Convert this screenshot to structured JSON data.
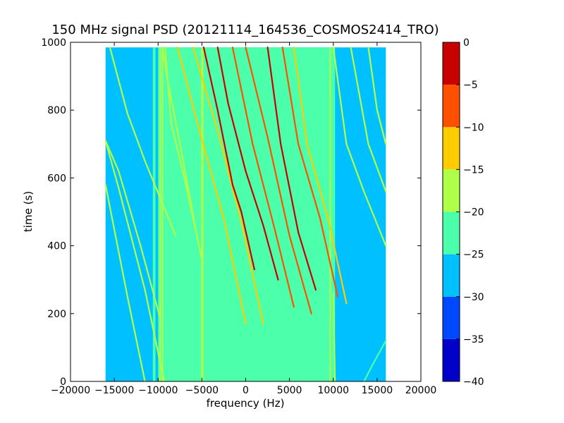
{
  "chart_data": {
    "type": "heatmap",
    "title": "150 MHz signal PSD (20121114_164536_COSMOS2414_TRO)",
    "xlabel": "frequency (Hz)",
    "ylabel": "time (s)",
    "xlim": [
      -20000,
      20000
    ],
    "ylim": [
      0,
      1000
    ],
    "x_ticks": [
      -20000,
      -15000,
      -10000,
      -5000,
      0,
      5000,
      10000,
      15000,
      20000
    ],
    "x_tick_labels": [
      "−20000",
      "−15000",
      "−10000",
      "−5000",
      "0",
      "5000",
      "10000",
      "15000",
      "20000"
    ],
    "y_ticks": [
      0,
      200,
      400,
      600,
      800,
      1000
    ],
    "y_tick_labels": [
      "0",
      "200",
      "400",
      "600",
      "800",
      "1000"
    ],
    "data_extent": {
      "x": [
        -16000,
        16000
      ],
      "y": [
        0,
        985
      ]
    },
    "background_level": -27.5,
    "regions": [
      {
        "x": [
          -10000,
          10000
        ],
        "level": -22.5
      },
      {
        "x": [
          -10600,
          -10300
        ],
        "level": -22.5
      },
      {
        "x": [
          -9200,
          -8900
        ],
        "level": -22.5
      },
      {
        "x": [
          9900,
          10200
        ],
        "level": -22.5
      }
    ],
    "vertical_lines": [
      {
        "x": -9750,
        "level": -17.5
      },
      {
        "x": -9500,
        "level": -17.5
      },
      {
        "x": -5000,
        "level": -17.5
      },
      {
        "x": -4900,
        "level": -17.5
      },
      {
        "x": 9650,
        "level": -17.5
      }
    ],
    "traces": [
      {
        "x": [
          -11500,
          -13500,
          -16000
        ],
        "y": [
          0,
          250,
          580
        ],
        "level": -17.5
      },
      {
        "x": [
          -9300,
          -11500,
          -14500,
          -16000
        ],
        "y": [
          0,
          270,
          570,
          710
        ],
        "level": -17.5
      },
      {
        "x": [
          -9700,
          -12000,
          -14500,
          -16000
        ],
        "y": [
          180,
          400,
          620,
          710
        ],
        "level": -17.5
      },
      {
        "x": [
          -8000,
          -11500,
          -13500,
          -15500
        ],
        "y": [
          430,
          650,
          790,
          985
        ],
        "level": -17.5
      },
      {
        "x": [
          -5000,
          -7000,
          -8500,
          -9200
        ],
        "y": [
          360,
          600,
          760,
          985
        ],
        "level": -17.5
      },
      {
        "x": [
          -5500,
          -7500,
          -9000,
          -9500
        ],
        "y": [
          420,
          700,
          900,
          985
        ],
        "level": -17.5
      },
      {
        "x": [
          0,
          -2500,
          -5500,
          -7800
        ],
        "y": [
          170,
          480,
          760,
          985
        ],
        "level": -12.5
      },
      {
        "x": [
          2000,
          -500,
          -3000,
          -6000
        ],
        "y": [
          170,
          470,
          720,
          985
        ],
        "level": -12.5
      },
      {
        "x": [
          1000,
          -500,
          -1500,
          -3200,
          -4800
        ],
        "y": [
          330,
          500,
          580,
          800,
          985
        ],
        "level": -2.5
      },
      {
        "x": [
          3700,
          2000,
          0,
          -2000,
          -3200
        ],
        "y": [
          300,
          460,
          620,
          820,
          985
        ],
        "level": -2.5
      },
      {
        "x": [
          5500,
          3300,
          800,
          -1500
        ],
        "y": [
          220,
          450,
          700,
          985
        ],
        "level": -7.5
      },
      {
        "x": [
          7500,
          5000,
          2500,
          0
        ],
        "y": [
          200,
          430,
          720,
          985
        ],
        "level": -7.5
      },
      {
        "x": [
          8000,
          6000,
          4000,
          2500
        ],
        "y": [
          270,
          440,
          700,
          985
        ],
        "level": -2.5
      },
      {
        "x": [
          10500,
          8500,
          6000,
          4200
        ],
        "y": [
          250,
          480,
          700,
          985
        ],
        "level": -7.5
      },
      {
        "x": [
          11500,
          9500,
          7000,
          5500
        ],
        "y": [
          230,
          470,
          700,
          985
        ],
        "level": -12.5
      },
      {
        "x": [
          16000,
          13500,
          11500,
          10000
        ],
        "y": [
          400,
          560,
          700,
          985
        ],
        "level": -17.5
      },
      {
        "x": [
          16000,
          14000,
          12000
        ],
        "y": [
          560,
          700,
          985
        ],
        "level": -17.5
      },
      {
        "x": [
          16000,
          15000,
          14000
        ],
        "y": [
          700,
          800,
          985
        ],
        "level": -17.5
      },
      {
        "x": [
          10200,
          10000
        ],
        "y": [
          0,
          260
        ],
        "level": -17.5
      },
      {
        "x": [
          13500,
          14500,
          16000
        ],
        "y": [
          0,
          50,
          120
        ],
        "level": -22.5
      }
    ],
    "colorbar": {
      "range": [
        -40,
        0
      ],
      "ticks": [
        0,
        -5,
        -10,
        -15,
        -20,
        -25,
        -30,
        -35,
        -40
      ],
      "tick_labels": [
        "0",
        "−5",
        "−10",
        "−15",
        "−20",
        "−25",
        "−30",
        "−35",
        "−40"
      ],
      "levels": [
        {
          "from": -40,
          "to": -35,
          "color": "#0000c8"
        },
        {
          "from": -35,
          "to": -30,
          "color": "#0048ff"
        },
        {
          "from": -30,
          "to": -25,
          "color": "#00c0ff"
        },
        {
          "from": -25,
          "to": -20,
          "color": "#4cffaa"
        },
        {
          "from": -20,
          "to": -15,
          "color": "#b0ff48"
        },
        {
          "from": -15,
          "to": -10,
          "color": "#ffcc00"
        },
        {
          "from": -10,
          "to": -5,
          "color": "#ff5000"
        },
        {
          "from": -5,
          "to": 0,
          "color": "#c80000"
        }
      ]
    },
    "grid": false,
    "legend": "none"
  }
}
